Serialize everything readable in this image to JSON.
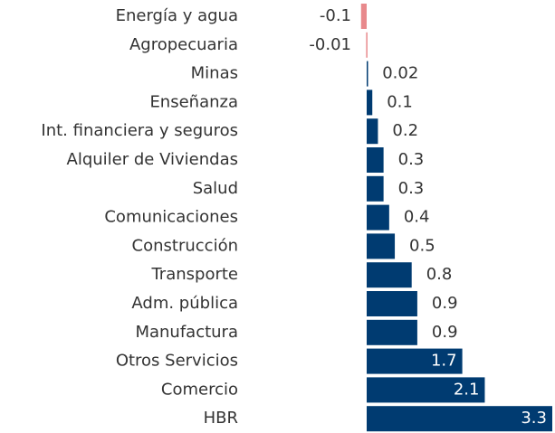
{
  "chart_data": {
    "type": "bar",
    "orientation": "horizontal",
    "categories": [
      "Energía y agua",
      "Agropecuaria",
      "Minas",
      "Enseñanza",
      "Int. financiera y seguros",
      "Alquiler de Viviendas",
      "Salud",
      "Comunicaciones",
      "Construcción",
      "Transporte",
      "Adm. pública",
      "Manufactura",
      "Otros Servicios",
      "Comercio",
      "HBR"
    ],
    "values": [
      -0.1,
      -0.01,
      0.02,
      0.1,
      0.2,
      0.3,
      0.3,
      0.4,
      0.5,
      0.8,
      0.9,
      0.9,
      1.7,
      2.1,
      3.3
    ],
    "color": "#003b71",
    "negative_color": "#e8898c"
  }
}
